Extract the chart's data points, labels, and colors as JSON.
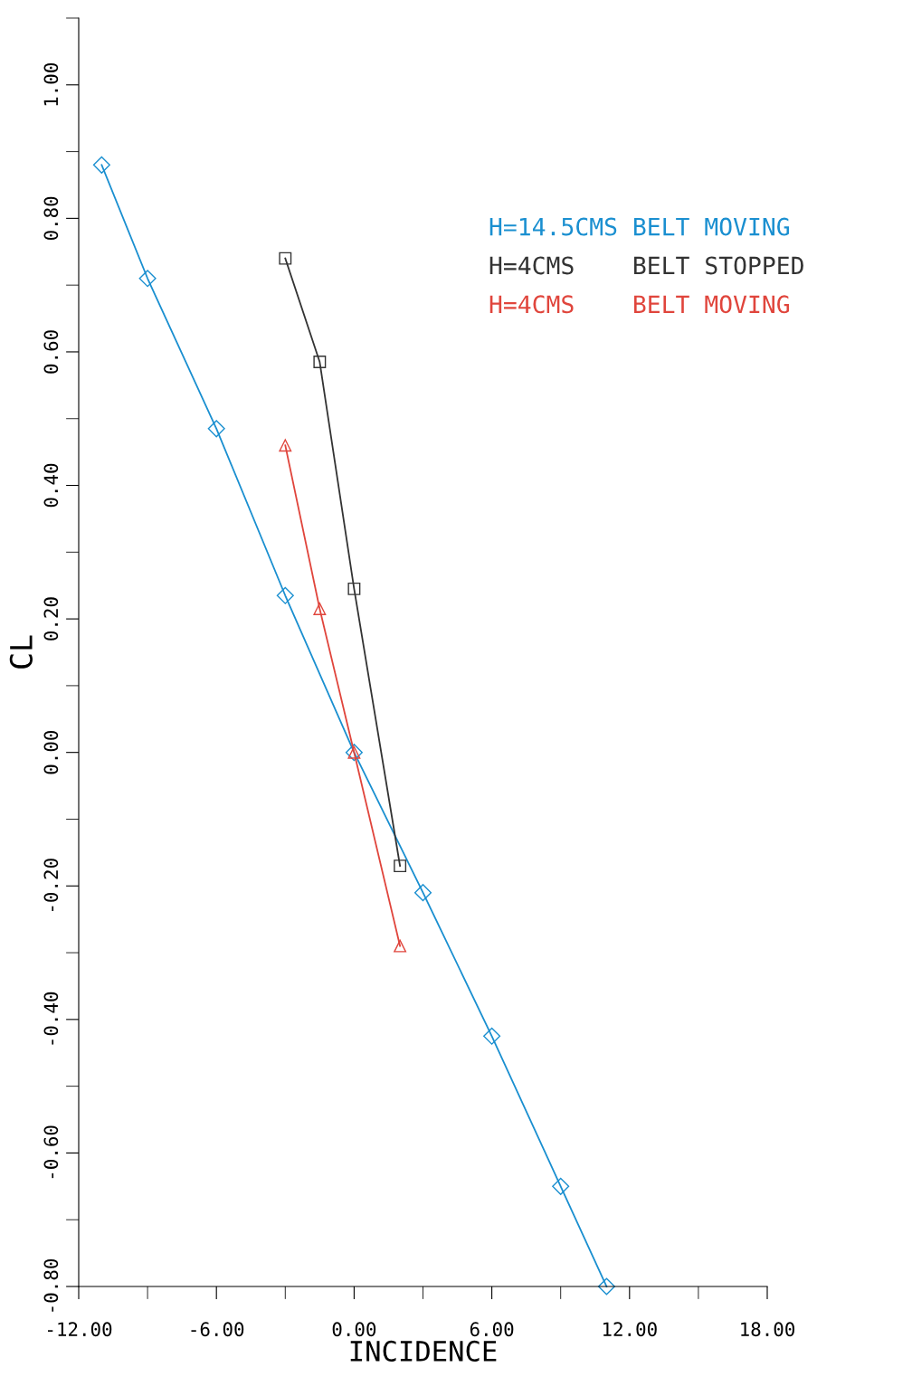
{
  "chart_data": {
    "type": "line",
    "xlabel": "INCIDENCE",
    "ylabel": "CL",
    "xlim": [
      -12,
      18
    ],
    "ylim": [
      -0.8,
      1.1
    ],
    "xticks": [
      {
        "value": -12,
        "label": "-12.00"
      },
      {
        "value": -9,
        "label": null
      },
      {
        "value": -6,
        "label": "-6.00"
      },
      {
        "value": -3,
        "label": null
      },
      {
        "value": 0,
        "label": "0.00"
      },
      {
        "value": 3,
        "label": null
      },
      {
        "value": 6,
        "label": "6.00"
      },
      {
        "value": 9,
        "label": null
      },
      {
        "value": 12,
        "label": "12.00"
      },
      {
        "value": 15,
        "label": null
      },
      {
        "value": 18,
        "label": "18.00"
      }
    ],
    "yticks": [
      {
        "value": -0.8,
        "label": "-0.80"
      },
      {
        "value": -0.7,
        "label": null
      },
      {
        "value": -0.6,
        "label": "-0.60"
      },
      {
        "value": -0.5,
        "label": null
      },
      {
        "value": -0.4,
        "label": "-0.40"
      },
      {
        "value": -0.3,
        "label": null
      },
      {
        "value": -0.2,
        "label": "-0.20"
      },
      {
        "value": -0.1,
        "label": null
      },
      {
        "value": 0,
        "label": "0.00"
      },
      {
        "value": 0.1,
        "label": null
      },
      {
        "value": 0.2,
        "label": "0.20"
      },
      {
        "value": 0.3,
        "label": null
      },
      {
        "value": 0.4,
        "label": "0.40"
      },
      {
        "value": 0.5,
        "label": null
      },
      {
        "value": 0.6,
        "label": "0.60"
      },
      {
        "value": 0.7,
        "label": null
      },
      {
        "value": 0.8,
        "label": "0.80"
      },
      {
        "value": 0.9,
        "label": null
      },
      {
        "value": 1.0,
        "label": "1.00"
      },
      {
        "value": 1.1,
        "label": null
      }
    ],
    "grid": false,
    "legend": "top right",
    "series": [
      {
        "name": "H=14.5CMS BELT MOVING",
        "color": "#1a8fd0",
        "marker": "diamond",
        "x": [
          -11,
          -9,
          -6,
          -3,
          0,
          3,
          6,
          9,
          11
        ],
        "values": [
          0.88,
          0.71,
          0.485,
          0.235,
          0.0,
          -0.21,
          -0.425,
          -0.65,
          -0.8
        ]
      },
      {
        "name": "H=4CMS    BELT STOPPED",
        "color": "#333333",
        "marker": "square",
        "x": [
          -3,
          -1.5,
          0,
          2
        ],
        "values": [
          0.74,
          0.585,
          0.245,
          -0.17
        ]
      },
      {
        "name": "H=4CMS    BELT MOVING",
        "color": "#e0453c",
        "marker": "triangle",
        "x": [
          -3,
          -1.5,
          0,
          2
        ],
        "values": [
          0.46,
          0.215,
          0.0,
          -0.29
        ]
      }
    ]
  }
}
